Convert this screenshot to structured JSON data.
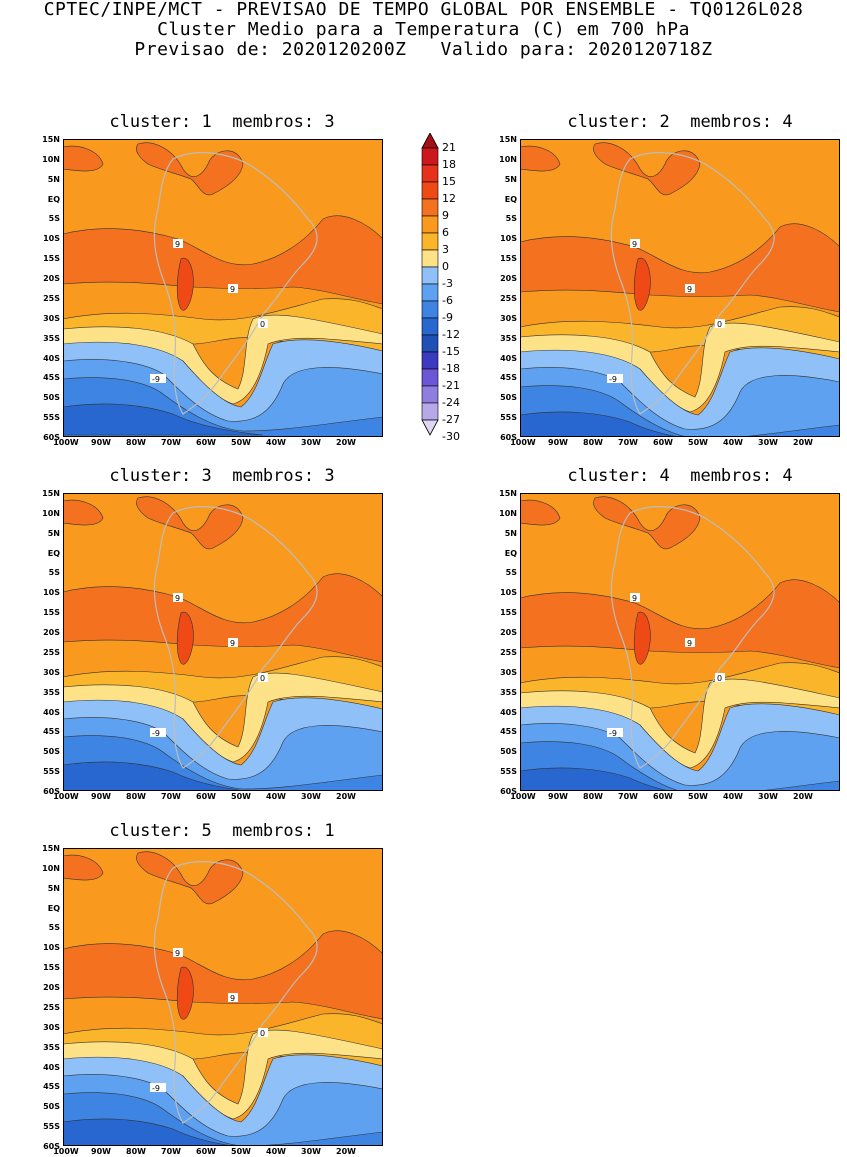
{
  "header": {
    "line1": "CPTEC/INPE/MCT - PREVISAO DE TEMPO GLOBAL POR ENSEMBLE - TQ0126L028",
    "line2": "Cluster Medio para a Temperatura (C) em 700 hPa",
    "line3": "Previsao de: 2020120200Z   Valido para: 2020120718Z"
  },
  "panels": [
    {
      "title": "cluster: 1  membros: 3"
    },
    {
      "title": "cluster: 2  membros: 4"
    },
    {
      "title": "cluster: 3  membros: 3"
    },
    {
      "title": "cluster: 4  membros: 4"
    },
    {
      "title": "cluster: 5  membros: 1"
    }
  ],
  "axes": {
    "lat_labels": [
      "15N",
      "10N",
      "5N",
      "EQ",
      "5S",
      "10S",
      "15S",
      "20S",
      "25S",
      "30S",
      "35S",
      "40S",
      "45S",
      "50S",
      "55S",
      "60S"
    ],
    "lon_labels": [
      "100W",
      "90W",
      "80W",
      "70W",
      "60W",
      "50W",
      "40W",
      "30W",
      "20W"
    ]
  },
  "contour_labels": [
    "9",
    "0",
    "-9"
  ],
  "colorbar": {
    "levels": [
      "21",
      "18",
      "15",
      "12",
      "9",
      "6",
      "3",
      "0",
      "-3",
      "-6",
      "-9",
      "-12",
      "-15",
      "-18",
      "-21",
      "-24",
      "-27",
      "-30"
    ],
    "colors": {
      "top_arrow": "#a50f15",
      "c18_21": "#cb181d",
      "c15_18": "#e5321b",
      "c12_15": "#ef4a15",
      "c9_12": "#f4711f",
      "c6_9": "#f99a1e",
      "c3_6": "#fbb52b",
      "c0_3": "#fde287",
      "m3_0": "#8fc0f7",
      "m6_m3": "#5ea1f0",
      "m9_m6": "#3d84e3",
      "m12_m9": "#2867cf",
      "m15_m12": "#1e50b5",
      "m18_m15": "#3b3bbf",
      "m21_m18": "#6a56d6",
      "m24_m21": "#8f7de0",
      "m27_m24": "#b7a8ea",
      "bottom_arrow": "#ddd6f5"
    }
  }
}
